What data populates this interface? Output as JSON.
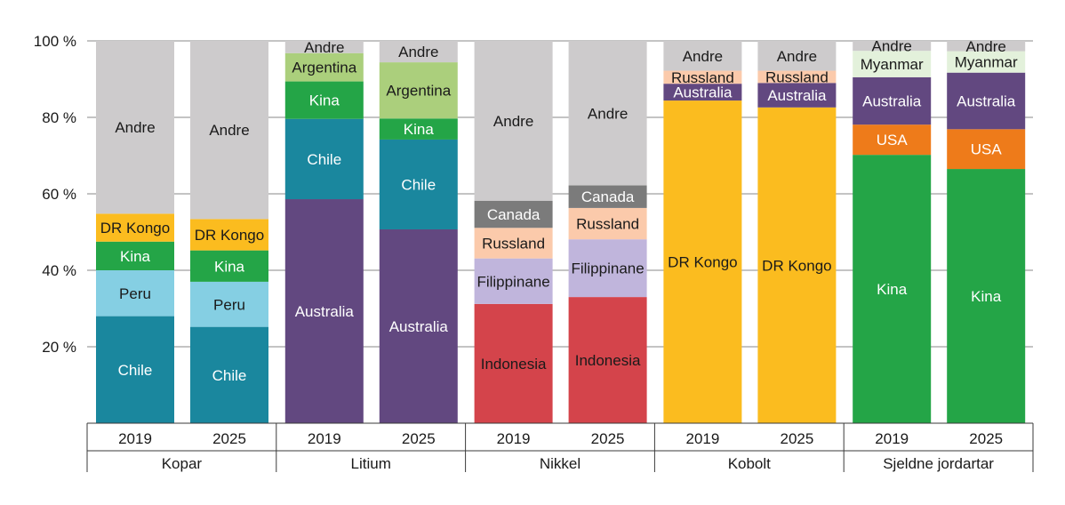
{
  "chart_data": {
    "type": "bar",
    "stacked": true,
    "title": "",
    "xlabel": "",
    "ylabel": "",
    "ylim": [
      0,
      100
    ],
    "y_ticks": [
      "20 %",
      "40 %",
      "60 %",
      "80 %",
      "100 %"
    ],
    "y_tick_values": [
      20,
      40,
      60,
      80,
      100
    ],
    "grid": "horizontal",
    "legend": "none",
    "colors": {
      "Andre": "#cdcbcc",
      "DR Kongo": "#fbbc1f",
      "Kina": "#24a547",
      "Peru": "#85cfe3",
      "Chile": "#1a879e",
      "Australia": "#624880",
      "Argentina": "#abcf7c",
      "Indonesia": "#d4444b",
      "Filippinane": "#c0b5dc",
      "Russland": "#fbcaab",
      "Canada": "#7b7b7b",
      "USA": "#ee7b1a",
      "Myanmar": "#e3f1db"
    },
    "label_colors": {
      "Chile": "#ffffff",
      "Peru": "#1a1a1a",
      "Kina": "#ffffff",
      "DR Kongo": "#1a1a1a",
      "Andre": "#1a1a1a",
      "Australia": "#ffffff",
      "Argentina": "#1a1a1a",
      "Indonesia": "#1a1a1a",
      "Filippinane": "#1a1a1a",
      "Russland": "#1a1a1a",
      "Canada": "#ffffff",
      "USA": "#ffffff",
      "Myanmar": "#1a1a1a"
    },
    "groups": [
      {
        "name": "Kopar",
        "bars": [
          {
            "year": "2019",
            "segments": [
              {
                "label": "Chile",
                "value": 28
              },
              {
                "label": "Peru",
                "value": 12
              },
              {
                "label": "Kina",
                "value": 7.5
              },
              {
                "label": "DR Kongo",
                "value": 7.3
              },
              {
                "label": "Andre",
                "value": 45.2
              }
            ]
          },
          {
            "year": "2025",
            "segments": [
              {
                "label": "Chile",
                "value": 25.2
              },
              {
                "label": "Peru",
                "value": 11.8
              },
              {
                "label": "Kina",
                "value": 8.2
              },
              {
                "label": "DR Kongo",
                "value": 8.2
              },
              {
                "label": "Andre",
                "value": 46.6
              }
            ]
          }
        ]
      },
      {
        "name": "Litium",
        "bars": [
          {
            "year": "2019",
            "segments": [
              {
                "label": "Australia",
                "value": 58.6
              },
              {
                "label": "Chile",
                "value": 21
              },
              {
                "label": "Kina",
                "value": 9.8
              },
              {
                "label": "Argentina",
                "value": 7.4
              },
              {
                "label": "Andre",
                "value": 3.2
              }
            ]
          },
          {
            "year": "2025",
            "segments": [
              {
                "label": "Australia",
                "value": 50.7
              },
              {
                "label": "Chile",
                "value": 23.5
              },
              {
                "label": "Kina",
                "value": 5.5
              },
              {
                "label": "Argentina",
                "value": 14.7
              },
              {
                "label": "Andre",
                "value": 5.6
              }
            ]
          }
        ]
      },
      {
        "name": "Nikkel",
        "bars": [
          {
            "year": "2019",
            "segments": [
              {
                "label": "Indonesia",
                "value": 31.2
              },
              {
                "label": "Filippinane",
                "value": 11.9
              },
              {
                "label": "Russland",
                "value": 8
              },
              {
                "label": "Canada",
                "value": 7.1
              },
              {
                "label": "Andre",
                "value": 41.8
              }
            ]
          },
          {
            "year": "2025",
            "segments": [
              {
                "label": "Indonesia",
                "value": 33
              },
              {
                "label": "Filippinane",
                "value": 15.1
              },
              {
                "label": "Russland",
                "value": 8.2
              },
              {
                "label": "Canada",
                "value": 5.9
              },
              {
                "label": "Andre",
                "value": 37.8
              }
            ]
          }
        ]
      },
      {
        "name": "Kobolt",
        "bars": [
          {
            "year": "2019",
            "segments": [
              {
                "label": "DR Kongo",
                "value": 84.4
              },
              {
                "label": "Australia",
                "value": 4.4
              },
              {
                "label": "Russland",
                "value": 3.4
              },
              {
                "label": "Andre",
                "value": 7.8
              }
            ]
          },
          {
            "year": "2025",
            "segments": [
              {
                "label": "DR Kongo",
                "value": 82.6
              },
              {
                "label": "Australia",
                "value": 6.4
              },
              {
                "label": "Russland",
                "value": 3.2
              },
              {
                "label": "Andre",
                "value": 7.8
              }
            ]
          }
        ]
      },
      {
        "name": "Sjeldne jordartar",
        "bars": [
          {
            "year": "2019",
            "segments": [
              {
                "label": "Kina",
                "value": 70.2
              },
              {
                "label": "USA",
                "value": 7.9
              },
              {
                "label": "Australia",
                "value": 12.4
              },
              {
                "label": "Myanmar",
                "value": 6.9
              },
              {
                "label": "Andre",
                "value": 2.6
              }
            ]
          },
          {
            "year": "2025",
            "segments": [
              {
                "label": "Kina",
                "value": 66.5
              },
              {
                "label": "USA",
                "value": 10.4
              },
              {
                "label": "Australia",
                "value": 14.8
              },
              {
                "label": "Myanmar",
                "value": 5.6
              },
              {
                "label": "Andre",
                "value": 2.7
              }
            ]
          }
        ]
      }
    ]
  }
}
